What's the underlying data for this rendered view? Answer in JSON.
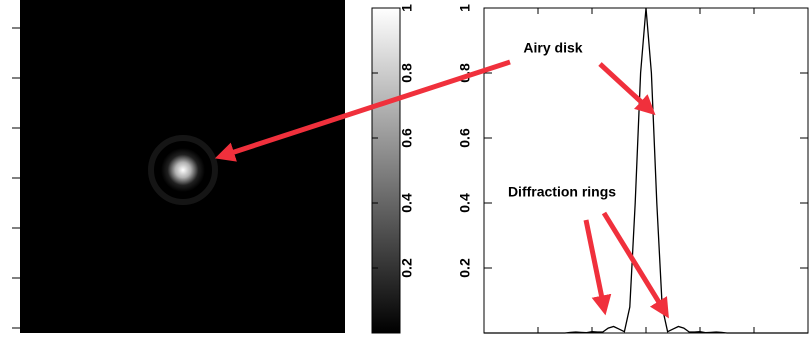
{
  "chart_data": [
    {
      "type": "image",
      "colorbar": {
        "ylim": [
          0,
          1
        ],
        "yticks": [
          0.2,
          0.4,
          0.6,
          0.8,
          1
        ]
      }
    },
    {
      "type": "line",
      "color": "#000000",
      "x": [
        -30,
        -20,
        -15,
        -14,
        -13,
        -12,
        -11,
        -10,
        -9,
        -8,
        -7,
        -6,
        -5,
        -4,
        -3,
        -2,
        -1,
        0,
        1,
        2,
        3,
        4,
        5,
        6,
        7,
        8,
        9,
        10,
        11,
        12,
        13,
        14,
        15,
        20,
        30
      ],
      "values": [
        0,
        0,
        0,
        0.002,
        0.003,
        0.002,
        0.001,
        0.004,
        0.003,
        0.003,
        0.015,
        0.02,
        0.012,
        0.004,
        0.08,
        0.4,
        0.8,
        1,
        0.8,
        0.4,
        0.08,
        0.004,
        0.012,
        0.02,
        0.015,
        0.003,
        0.003,
        0.004,
        0.001,
        0.002,
        0.003,
        0.002,
        0,
        0,
        0
      ],
      "xlim": [
        -30,
        30
      ],
      "xticks": [
        -20,
        -10,
        0,
        10,
        20
      ],
      "ylim": [
        0,
        1
      ],
      "yticks": [
        0.2,
        0.4,
        0.6,
        0.8,
        1
      ],
      "annotations": [
        "Airy disk",
        "Diffraction rings"
      ]
    }
  ]
}
